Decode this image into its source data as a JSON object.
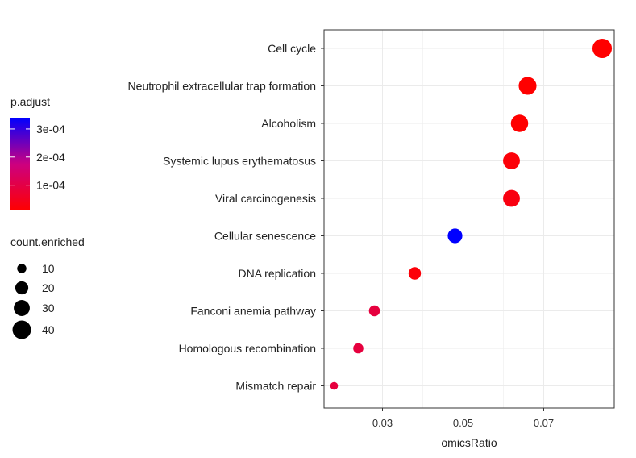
{
  "chart_data": {
    "type": "scatter",
    "xlabel": "omicsRatio",
    "ylabel": "",
    "xlim": [
      0.0155,
      0.0875
    ],
    "x_ticks": [
      0.03,
      0.05,
      0.07
    ],
    "x_tick_labels": [
      "0.03",
      "0.05",
      "0.07"
    ],
    "grid": true,
    "categories": [
      "Cell cycle",
      "Neutrophil extracellular trap formation",
      "Alcoholism",
      "Systemic lupus erythematosus",
      "Viral carcinogenesis",
      "Cellular senescence",
      "DNA replication",
      "Fanconi anemia pathway",
      "Homologous recombination",
      "Mismatch repair"
    ],
    "points": [
      {
        "term": "Cell cycle",
        "omicsRatio": 0.0845,
        "count_enriched": 44,
        "p_adjust": 1e-05
      },
      {
        "term": "Neutrophil extracellular trap formation",
        "omicsRatio": 0.066,
        "count_enriched": 37,
        "p_adjust": 1e-05
      },
      {
        "term": "Alcoholism",
        "omicsRatio": 0.064,
        "count_enriched": 35,
        "p_adjust": 1e-05
      },
      {
        "term": "Systemic lupus erythematosus",
        "omicsRatio": 0.062,
        "count_enriched": 33,
        "p_adjust": 2e-05
      },
      {
        "term": "Viral carcinogenesis",
        "omicsRatio": 0.062,
        "count_enriched": 33,
        "p_adjust": 3e-05
      },
      {
        "term": "Cellular senescence",
        "omicsRatio": 0.048,
        "count_enriched": 25,
        "p_adjust": 0.00034
      },
      {
        "term": "DNA replication",
        "omicsRatio": 0.038,
        "count_enriched": 18,
        "p_adjust": 2e-05
      },
      {
        "term": "Fanconi anemia pathway",
        "omicsRatio": 0.028,
        "count_enriched": 14,
        "p_adjust": 9e-05
      },
      {
        "term": "Homologous recombination",
        "omicsRatio": 0.024,
        "count_enriched": 12,
        "p_adjust": 9e-05
      },
      {
        "term": "Mismatch repair",
        "omicsRatio": 0.018,
        "count_enriched": 7,
        "p_adjust": 9e-05
      }
    ],
    "color_legend": {
      "title": "p.adjust",
      "min": 1e-05,
      "max": 0.00034,
      "low_color": "#ff0000",
      "high_color": "#0000ff",
      "ticks": [
        0.0001,
        0.0002,
        0.0003
      ],
      "tick_labels": [
        "1e-04",
        "2e-04",
        "3e-04"
      ]
    },
    "size_legend": {
      "title": "count.enriched",
      "values": [
        10,
        20,
        30,
        40
      ],
      "labels": [
        "10",
        "20",
        "30",
        "40"
      ]
    },
    "legend_position": "left"
  }
}
